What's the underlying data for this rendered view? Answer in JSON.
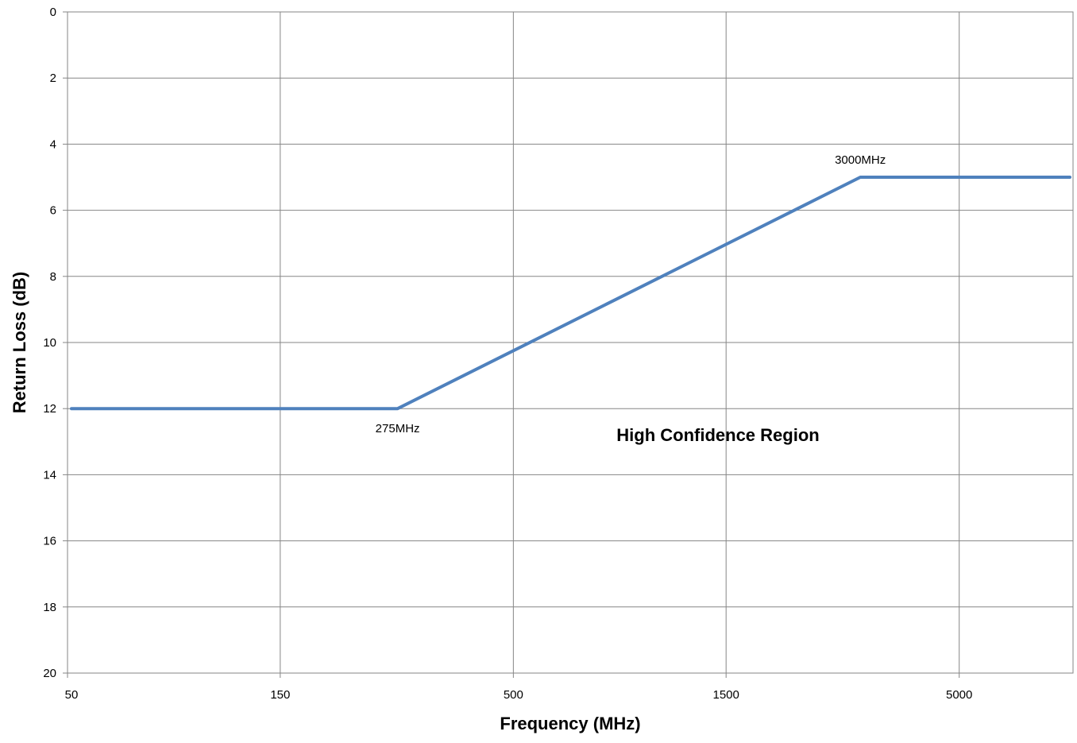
{
  "chart_data": {
    "type": "line",
    "title": "",
    "xlabel": "Frequency (MHz)",
    "ylabel": "Return Loss (dB)",
    "x_scale": "log",
    "x_ticks": [
      "50",
      "150",
      "500",
      "1500",
      "5000"
    ],
    "y_ticks": [
      "0",
      "2",
      "4",
      "6",
      "8",
      "10",
      "12",
      "14",
      "16",
      "18",
      "20"
    ],
    "ylim": [
      0,
      20
    ],
    "y_inverted": true,
    "grid": true,
    "series": [
      {
        "x": [
          50,
          275,
          3000,
          9000
        ],
        "y": [
          12,
          12,
          5,
          5
        ],
        "color": "#4F81BD"
      }
    ],
    "annotations": [
      {
        "text": "275MHz",
        "x": 275,
        "y": 12
      },
      {
        "text": "3000MHz",
        "x": 3000,
        "y": 5
      }
    ],
    "region_label": "High Confidence Region"
  }
}
